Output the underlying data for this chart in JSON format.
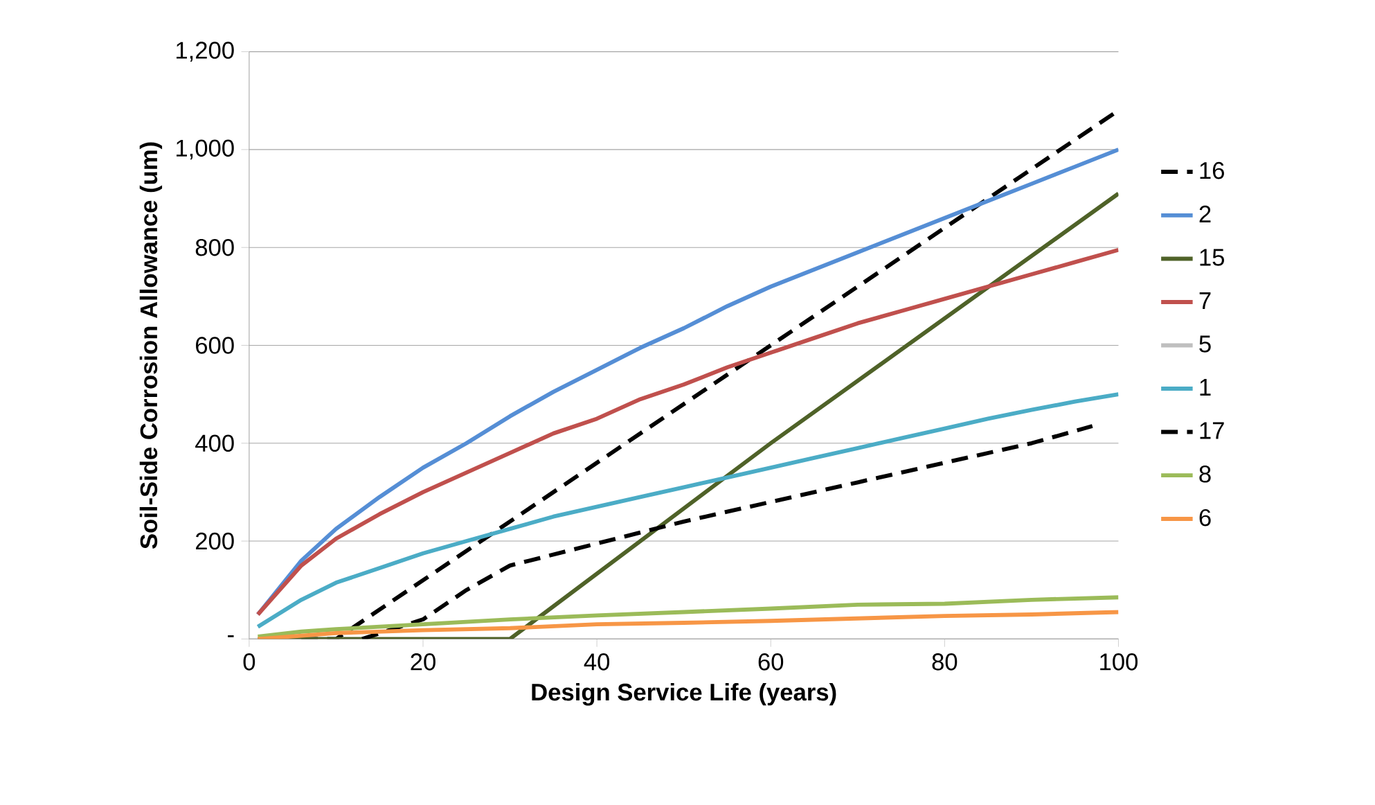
{
  "chart_data": {
    "type": "line",
    "xlabel": "Design Service Life (years)",
    "ylabel": "Soil-Side Corrosion  Allowance (um)",
    "xlim": [
      0,
      100
    ],
    "xticks": [
      0,
      20,
      40,
      60,
      80,
      100
    ],
    "ylim": [
      0,
      1200
    ],
    "yticks": [
      {
        "value": 0,
        "label": "-"
      },
      200,
      400,
      600,
      800,
      {
        "value": 1000,
        "label": "1,000"
      },
      {
        "value": 1200,
        "label": "1,200"
      }
    ],
    "grid": "y",
    "legend": "right",
    "marker": "none",
    "series": [
      {
        "name": "16",
        "color": "#000000",
        "line_style": "dashed",
        "x": [
          6,
          10,
          60,
          100
        ],
        "values": [
          0,
          0,
          600,
          1080
        ]
      },
      {
        "name": "2",
        "color": "#558ed5",
        "x": [
          1,
          6,
          10,
          15,
          20,
          25,
          30,
          35,
          40,
          45,
          50,
          55,
          60,
          65,
          70,
          75,
          80,
          85,
          90,
          95,
          100
        ],
        "values": [
          50,
          160,
          225,
          290,
          350,
          400,
          455,
          505,
          550,
          595,
          635,
          680,
          720,
          755,
          790,
          825,
          860,
          895,
          930,
          965,
          1000
        ]
      },
      {
        "name": "15",
        "color": "#4f6228",
        "x": [
          1,
          30,
          60,
          100
        ],
        "values": [
          0,
          0,
          400,
          910
        ]
      },
      {
        "name": "7",
        "color": "#c0504d",
        "x": [
          1,
          6,
          10,
          15,
          20,
          25,
          30,
          35,
          40,
          45,
          50,
          55,
          60,
          65,
          70,
          75,
          80,
          85,
          90,
          95,
          100
        ],
        "values": [
          50,
          150,
          205,
          255,
          300,
          340,
          380,
          420,
          450,
          490,
          520,
          555,
          585,
          615,
          645,
          670,
          695,
          720,
          745,
          770,
          795
        ]
      },
      {
        "name": "5",
        "color": "#bfbfbf"
      },
      {
        "name": "1",
        "color": "#4bacc6",
        "x": [
          1,
          6,
          10,
          15,
          20,
          25,
          30,
          35,
          40,
          45,
          50,
          55,
          60,
          65,
          70,
          75,
          80,
          85,
          90,
          95,
          100
        ],
        "values": [
          25,
          80,
          115,
          145,
          175,
          200,
          225,
          250,
          270,
          290,
          310,
          330,
          350,
          370,
          390,
          410,
          430,
          450,
          468,
          485,
          500
        ]
      },
      {
        "name": "17",
        "color": "#000000",
        "line_style": "dashed",
        "x": [
          13,
          20,
          25,
          30,
          40,
          50,
          60,
          70,
          80,
          90,
          97
        ],
        "values": [
          0,
          40,
          100,
          150,
          195,
          240,
          280,
          320,
          360,
          400,
          435
        ]
      },
      {
        "name": "8",
        "color": "#9bbb59",
        "x": [
          1,
          6,
          10,
          20,
          30,
          40,
          50,
          60,
          70,
          80,
          90,
          100
        ],
        "values": [
          5,
          15,
          20,
          30,
          40,
          48,
          55,
          62,
          70,
          72,
          80,
          85
        ]
      },
      {
        "name": "6",
        "color": "#f79646",
        "x": [
          1,
          10,
          20,
          30,
          40,
          50,
          60,
          70,
          80,
          90,
          100
        ],
        "values": [
          0,
          12,
          18,
          22,
          30,
          33,
          37,
          42,
          47,
          50,
          55
        ]
      }
    ]
  }
}
